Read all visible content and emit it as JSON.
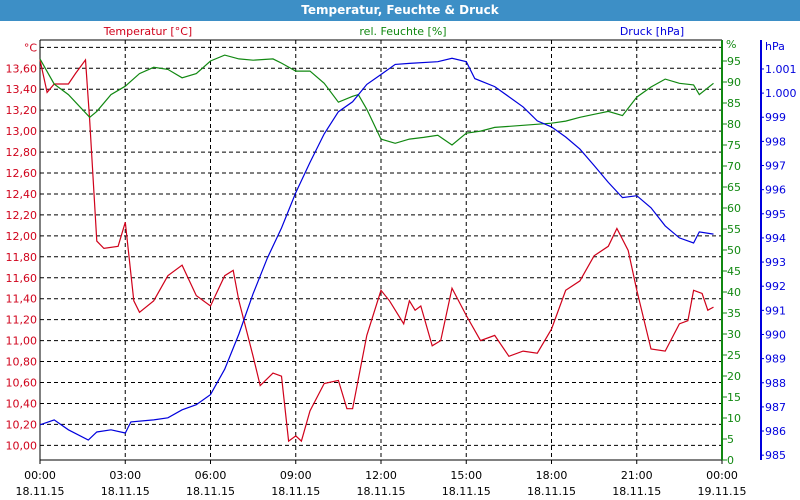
{
  "chart_data": {
    "type": "line",
    "title": "Temperatur, Feuchte & Druck",
    "colors": {
      "temperature": "#d0021b",
      "humidity": "#118811",
      "pressure": "#0000dd",
      "title_bar": "#3d8fc6"
    },
    "x_unit": "hours since 18.11.15 00:00",
    "xlim": [
      0,
      24
    ],
    "x_ticks": [
      {
        "time": "00:00",
        "date": "18.11.15",
        "h": 0
      },
      {
        "time": "03:00",
        "date": "18.11.15",
        "h": 3
      },
      {
        "time": "06:00",
        "date": "18.11.15",
        "h": 6
      },
      {
        "time": "09:00",
        "date": "18.11.15",
        "h": 9
      },
      {
        "time": "12:00",
        "date": "18.11.15",
        "h": 12
      },
      {
        "time": "15:00",
        "date": "18.11.15",
        "h": 15
      },
      {
        "time": "18:00",
        "date": "18.11.15",
        "h": 18
      },
      {
        "time": "21:00",
        "date": "18.11.15",
        "h": 21
      },
      {
        "time": "00:00",
        "date": "19.11.15",
        "h": 24
      }
    ],
    "axes": {
      "temperature": {
        "label": "Temperatur [°C]",
        "unit": "°C",
        "ylim": [
          9.86,
          13.87
        ],
        "ticks": [
          "10,00",
          "10,20",
          "10,40",
          "10,60",
          "10,80",
          "11,00",
          "11,20",
          "11,40",
          "11,60",
          "11,80",
          "12,00",
          "12,20",
          "12,40",
          "12,60",
          "12,80",
          "13,00",
          "13,20",
          "13,40",
          "13,60"
        ]
      },
      "humidity": {
        "label": "rel. Feuchte [%]",
        "unit": "%",
        "ylim": [
          0,
          100
        ],
        "ticks": [
          "0",
          "5",
          "10",
          "15",
          "20",
          "25",
          "30",
          "35",
          "40",
          "45",
          "50",
          "55",
          "60",
          "65",
          "70",
          "75",
          "80",
          "85",
          "90",
          "95"
        ]
      },
      "pressure": {
        "label": "Druck [hPa]",
        "unit": "hPa",
        "ylim": [
          984.8,
          1002.2
        ],
        "ticks": [
          "985",
          "986",
          "987",
          "988",
          "989",
          "990",
          "991",
          "992",
          "993",
          "994",
          "995",
          "996",
          "997",
          "998",
          "999",
          "1.000",
          "1.001"
        ]
      }
    },
    "series": [
      {
        "name": "Temperatur",
        "axis": "temperature",
        "x": [
          0,
          0.25,
          0.5,
          1.0,
          1.25,
          1.6,
          1.75,
          2.0,
          2.25,
          2.75,
          3.0,
          3.3,
          3.5,
          4.0,
          4.5,
          5.0,
          5.5,
          6.0,
          6.5,
          6.8,
          7.0,
          7.5,
          7.75,
          8.2,
          8.5,
          8.75,
          9.0,
          9.2,
          9.5,
          10,
          10.5,
          10.8,
          11,
          11.5,
          12,
          12.3,
          12.8,
          13.0,
          13.2,
          13.4,
          13.8,
          14.1,
          14.5,
          15,
          15.5,
          16,
          16.5,
          17,
          17.5,
          18,
          18.5,
          19,
          19.5,
          20,
          20.3,
          20.7,
          21,
          21.5,
          22,
          22.5,
          22.8,
          23.0,
          23.3,
          23.5,
          23.7
        ],
        "y": [
          13.68,
          13.37,
          13.45,
          13.45,
          13.55,
          13.68,
          13.1,
          11.95,
          11.88,
          11.9,
          12.13,
          11.38,
          11.27,
          11.38,
          11.62,
          11.72,
          11.43,
          11.33,
          11.62,
          11.67,
          11.38,
          10.85,
          10.57,
          10.69,
          10.66,
          10.04,
          10.09,
          10.04,
          10.33,
          10.59,
          10.62,
          10.35,
          10.35,
          11.05,
          11.48,
          11.38,
          11.16,
          11.38,
          11.29,
          11.33,
          10.95,
          11.0,
          11.5,
          11.24,
          11.0,
          11.05,
          10.85,
          10.9,
          10.88,
          11.11,
          11.48,
          11.57,
          11.81,
          11.9,
          12.07,
          11.86,
          11.48,
          10.92,
          10.9,
          11.16,
          11.19,
          11.48,
          11.45,
          11.29,
          11.32
        ]
      },
      {
        "name": "rel. Feuchte",
        "axis": "humidity",
        "x": [
          0,
          0.5,
          1.0,
          1.75,
          2.0,
          2.5,
          3.0,
          3.5,
          4.0,
          4.5,
          5.0,
          5.5,
          6.0,
          6.5,
          7,
          7.5,
          8.2,
          8.5,
          9.0,
          9.5,
          10,
          10.5,
          11,
          11.2,
          11.5,
          12,
          12.5,
          13,
          13.5,
          14,
          14.5,
          15,
          15.5,
          16,
          17,
          18,
          18.5,
          19,
          19.5,
          20,
          20.5,
          21,
          21.5,
          22,
          22.5,
          23,
          23.2,
          23.7
        ],
        "y": [
          95.5,
          89.5,
          87,
          81.6,
          83,
          87,
          89,
          92,
          93.5,
          93,
          91,
          92,
          95,
          96.4,
          95.5,
          95.2,
          95.5,
          94.5,
          92.6,
          92.6,
          89.7,
          85.2,
          86.6,
          87,
          83.5,
          76.4,
          75.4,
          76.4,
          76.8,
          77.3,
          75,
          77.8,
          78.3,
          79.2,
          79.7,
          80.2,
          80.7,
          81.6,
          82.3,
          83,
          82,
          86.4,
          88.8,
          90.7,
          89.7,
          89.3,
          87,
          89.7
        ]
      },
      {
        "name": "Druck",
        "axis": "pressure",
        "x": [
          0,
          0.5,
          1.0,
          1.7,
          2,
          2.5,
          3.0,
          3.2,
          4,
          4.5,
          5,
          5.5,
          6.0,
          6.5,
          7.0,
          7.5,
          8.0,
          8.5,
          9.0,
          9.5,
          10,
          10.5,
          11,
          11.5,
          12,
          12.5,
          13,
          14,
          14.5,
          15,
          15.3,
          16,
          16.5,
          17,
          17.5,
          18,
          18.5,
          19,
          19.5,
          20,
          20.5,
          21,
          21.5,
          22,
          22.5,
          23,
          23.2,
          23.7
        ],
        "y": [
          986.26,
          986.46,
          986.05,
          985.63,
          985.96,
          986.05,
          985.92,
          986.38,
          986.46,
          986.55,
          986.88,
          987.09,
          987.51,
          988.56,
          990.02,
          991.69,
          993.16,
          994.41,
          995.88,
          997.13,
          998.31,
          999.23,
          999.64,
          1000.36,
          1000.77,
          1001.19,
          1001.23,
          1001.3,
          1001.44,
          1001.3,
          1000.6,
          1000.27,
          999.85,
          999.43,
          998.85,
          998.6,
          998.18,
          997.68,
          997.0,
          996.3,
          995.67,
          995.75,
          995.25,
          994.5,
          994.0,
          993.79,
          994.25,
          994.16
        ]
      }
    ]
  }
}
